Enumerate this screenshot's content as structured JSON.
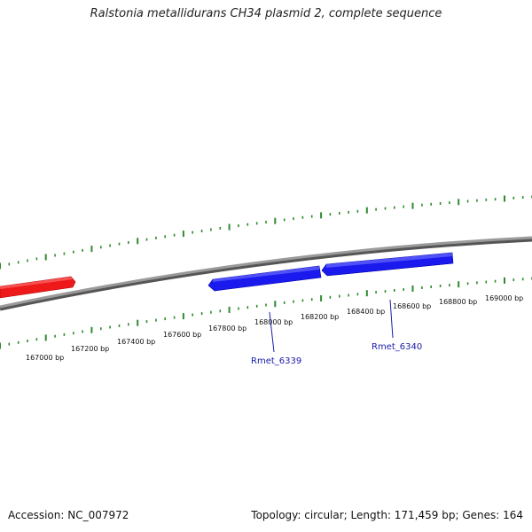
{
  "header": {
    "title": "Ralstonia metallidurans CH34 plasmid 2, complete sequence"
  },
  "footer": {
    "accession": "Accession: NC_007972",
    "summary": "Topology: circular; Length: 171,459 bp; Genes: 164"
  },
  "colors": {
    "backbone": "#8a8a8a",
    "ticks": "#2e8b2e",
    "gene_forward": "#1a1aee",
    "gene_reverse": "#ee1a1a",
    "gene_label": "#1a1aaa"
  },
  "scale": {
    "unit": "bp",
    "labels": [
      "167000 bp",
      "167200 bp",
      "167400 bp",
      "167600 bp",
      "167800 bp",
      "168000 bp",
      "168200 bp",
      "168400 bp",
      "168600 bp",
      "168800 bp",
      "169000 bp"
    ]
  },
  "genes": [
    {
      "name": "",
      "strand": "reverse",
      "color": "#ee1a1a"
    },
    {
      "name": "Rmet_6339",
      "strand": "forward",
      "color": "#1a1aee"
    },
    {
      "name": "Rmet_6340",
      "strand": "forward",
      "color": "#1a1aee"
    }
  ]
}
